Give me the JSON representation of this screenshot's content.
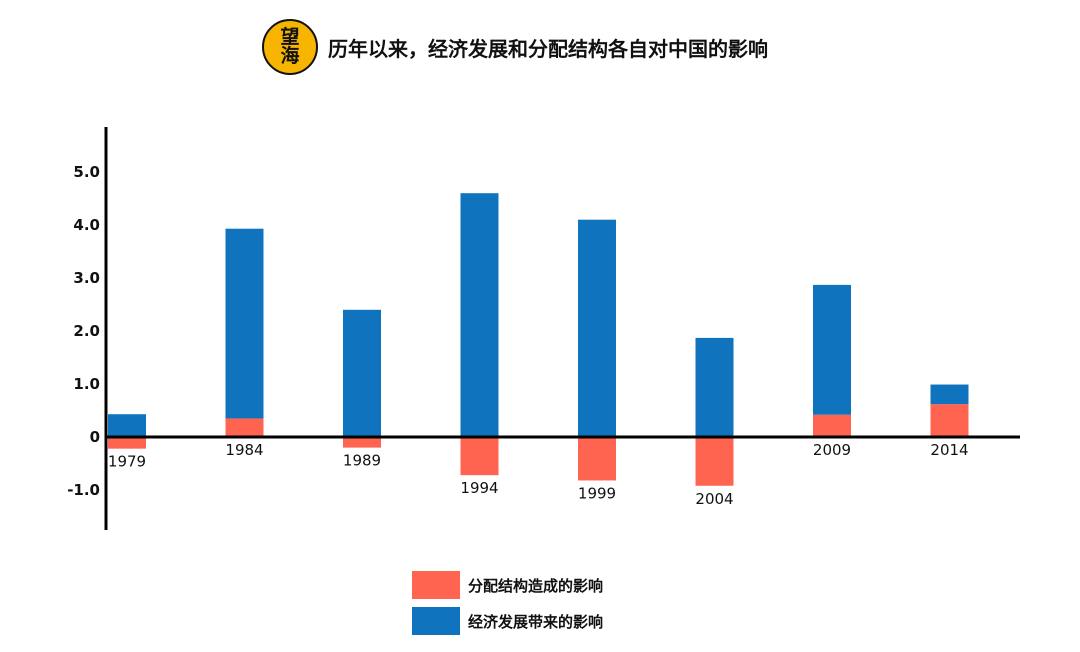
{
  "header": {
    "logo_text_1": "望",
    "logo_text_2": "海",
    "title": "历年以来，经济发展和分配结构各自对中国的影响"
  },
  "colors": {
    "distribution": "#ff6450",
    "economy": "#0f74bd"
  },
  "chart_data": {
    "type": "bar",
    "stacked": true,
    "categories": [
      "1979",
      "1984",
      "1989",
      "1994",
      "1999",
      "2004",
      "2009",
      "2014"
    ],
    "series": [
      {
        "name": "分配结构造成的影响",
        "values": [
          -0.22,
          0.35,
          -0.2,
          -0.72,
          -0.82,
          -0.92,
          0.42,
          0.62
        ]
      },
      {
        "name": "经济发展带来的影响",
        "values": [
          0.43,
          3.58,
          2.4,
          4.6,
          4.1,
          1.87,
          2.45,
          0.37
        ]
      }
    ],
    "y_ticks": [
      "5.0",
      "4.0",
      "3.0",
      "2.0",
      "1.0",
      "0",
      "-1.0"
    ],
    "ylim": [
      -1.7,
      5.8
    ],
    "legend_position": "bottom-center"
  }
}
